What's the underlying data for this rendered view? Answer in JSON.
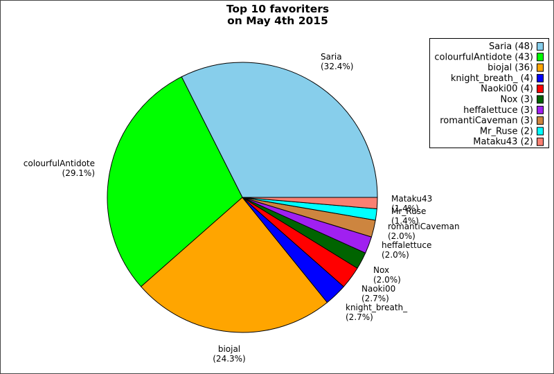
{
  "chart_data": {
    "type": "pie",
    "title": [
      "Top 10 favoriters",
      "on May 4th 2015"
    ],
    "legend_position": "top-right",
    "slices": [
      {
        "name": "Saria",
        "value": 48,
        "percent_label": "(32.4%)",
        "legend_label": "Saria (48)",
        "color": "#87ceeb"
      },
      {
        "name": "colourfulAntidote",
        "value": 43,
        "percent_label": "(29.1%)",
        "legend_label": "colourfulAntidote (43)",
        "color": "#00ff00"
      },
      {
        "name": "biojal",
        "value": 36,
        "percent_label": "(24.3%)",
        "legend_label": "biojal (36)",
        "color": "#ffa500"
      },
      {
        "name": "knight_breath_",
        "value": 4,
        "percent_label": "(2.7%)",
        "legend_label": "knight_breath_ (4)",
        "color": "#0000ff"
      },
      {
        "name": "Naoki00",
        "value": 4,
        "percent_label": "(2.7%)",
        "legend_label": "Naoki00 (4)",
        "color": "#ff0000"
      },
      {
        "name": "Nox",
        "value": 3,
        "percent_label": "(2.0%)",
        "legend_label": "Nox (3)",
        "color": "#006400"
      },
      {
        "name": "heffalettuce",
        "value": 3,
        "percent_label": "(2.0%)",
        "legend_label": "heffalettuce (3)",
        "color": "#a020f0"
      },
      {
        "name": "romantiCaveman",
        "value": 3,
        "percent_label": "(2.0%)",
        "legend_label": "romantiCaveman (3)",
        "color": "#cd853f"
      },
      {
        "name": "Mr_Ruse",
        "value": 2,
        "percent_label": "(1.4%)",
        "legend_label": "Mr_Ruse (2)",
        "color": "#00ffff"
      },
      {
        "name": "Mataku43",
        "value": 2,
        "percent_label": "(1.4%)",
        "legend_label": "Mataku43 (2)",
        "color": "#fa8072"
      }
    ]
  }
}
